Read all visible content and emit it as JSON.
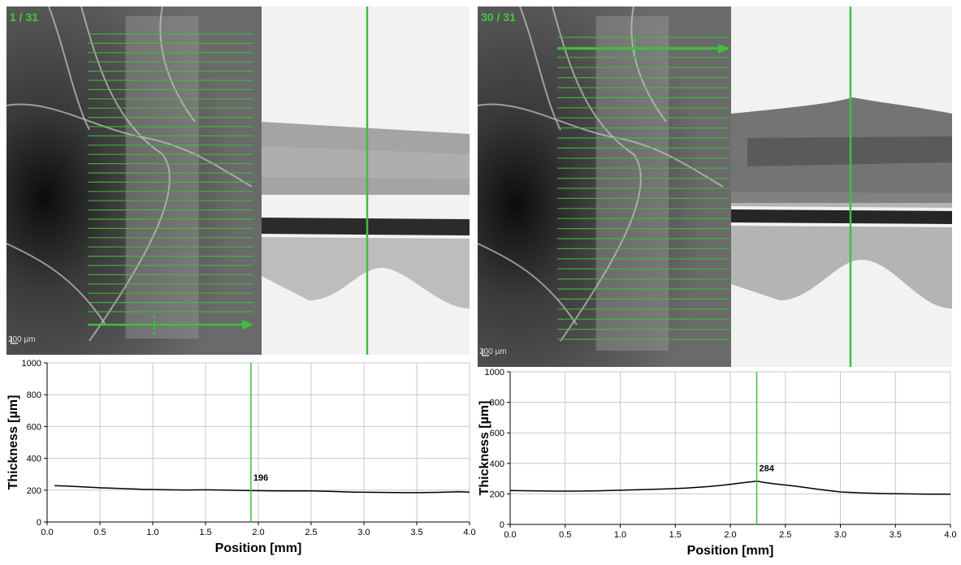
{
  "left": {
    "scan_label": "1 / 31",
    "scale_bar_label": "200 µm"
  },
  "right": {
    "scan_label": "30 / 31",
    "scale_bar_label": "200 µm"
  },
  "colors": {
    "accent_green": "#3fbf3f",
    "profile_line": "#000000",
    "grid": "#c8c8c8"
  },
  "chart_data": [
    {
      "type": "line",
      "title": "",
      "xlabel": "Position [mm]",
      "ylabel": "Thickness [µm]",
      "xlim": [
        0.0,
        4.0
      ],
      "ylim": [
        0,
        1000
      ],
      "xticks": [
        "0.0",
        "0.5",
        "1.0",
        "1.5",
        "2.0",
        "2.5",
        "3.0",
        "3.5",
        "4.0"
      ],
      "yticks": [
        "0",
        "200",
        "400",
        "600",
        "800",
        "1000"
      ],
      "grid": true,
      "cursor": {
        "x": 1.93,
        "value_label": "196"
      },
      "series": [
        {
          "x": [
            0.07,
            0.2,
            0.3,
            0.5,
            0.7,
            0.9,
            1.1,
            1.3,
            1.5,
            1.7,
            1.9,
            2.1,
            2.3,
            2.5,
            2.7,
            2.9,
            3.1,
            3.3,
            3.5,
            3.7,
            3.9,
            4.0
          ],
          "values": [
            228,
            225,
            222,
            215,
            210,
            205,
            203,
            201,
            202,
            200,
            198,
            196,
            195,
            195,
            192,
            188,
            186,
            185,
            184,
            186,
            190,
            188
          ]
        }
      ]
    },
    {
      "type": "line",
      "title": "",
      "xlabel": "Position [mm]",
      "ylabel": "Thickness [µm]",
      "xlim": [
        0.0,
        4.0
      ],
      "ylim": [
        0,
        1000
      ],
      "xticks": [
        "0.0",
        "0.5",
        "1.0",
        "1.5",
        "2.0",
        "2.5",
        "3.0",
        "3.5",
        "4.0"
      ],
      "yticks": [
        "0",
        "200",
        "400",
        "600",
        "800",
        "1000"
      ],
      "grid": true,
      "cursor": {
        "x": 2.24,
        "value_label": "284"
      },
      "series": [
        {
          "x": [
            0.0,
            0.2,
            0.4,
            0.6,
            0.8,
            1.0,
            1.2,
            1.4,
            1.6,
            1.8,
            1.9,
            2.0,
            2.1,
            2.2,
            2.24,
            2.3,
            2.4,
            2.5,
            2.6,
            2.8,
            3.0,
            3.2,
            3.4,
            3.6,
            3.8,
            4.0
          ],
          "values": [
            222,
            220,
            218,
            218,
            220,
            224,
            228,
            232,
            238,
            248,
            255,
            263,
            272,
            280,
            284,
            276,
            266,
            258,
            250,
            230,
            213,
            206,
            202,
            200,
            198,
            198
          ]
        }
      ]
    }
  ]
}
